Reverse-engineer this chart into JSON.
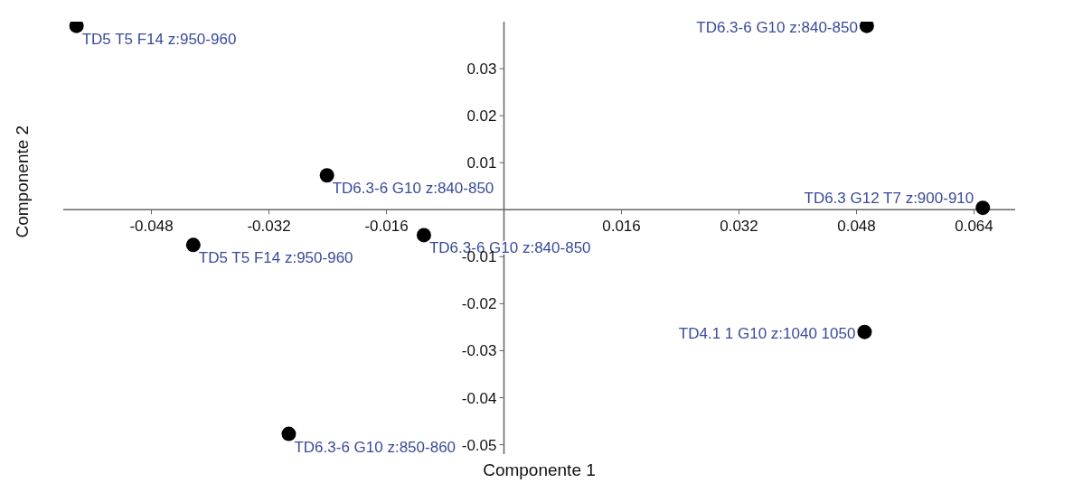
{
  "chart_data": {
    "type": "scatter",
    "xlabel": "Componente 1",
    "ylabel": "Componente 2",
    "x": [
      -0.0582,
      0.0494,
      -0.0241,
      0.0652,
      -0.0423,
      -0.0109,
      0.0491,
      -0.0293
    ],
    "values": [
      0.0391,
      0.0391,
      0.0073,
      0.0004,
      -0.0075,
      -0.0054,
      -0.026,
      -0.0477
    ],
    "color": "#000000",
    "marker": "circle",
    "xlim": [
      -0.06,
      0.0696
    ],
    "ylim": [
      -0.052,
      0.04
    ],
    "xticks": [
      -0.048,
      -0.032,
      -0.016,
      0.016,
      0.032,
      0.048,
      0.064
    ],
    "yticks": [
      0.03,
      0.02,
      0.01,
      -0.01,
      -0.02,
      -0.03,
      -0.04,
      -0.05
    ],
    "annotations": [
      {
        "text": "TD5 T5 F14 z:950-960",
        "x": -0.0582,
        "y": 0.0391
      },
      {
        "text": "TD6.3-6 G10 z:840-850",
        "x": 0.0494,
        "y": 0.0391
      },
      {
        "text": "TD6.3-6 G10 z:840-850",
        "x": -0.0241,
        "y": 0.0073
      },
      {
        "text": "TD6.3 G12 T7 z:900-910",
        "x": 0.0652,
        "y": 0.0004
      },
      {
        "text": "TD5 T5 F14 z:950-960",
        "x": -0.0423,
        "y": -0.0075
      },
      {
        "text": "TD6.3-6 G10 z:840-850",
        "x": -0.0109,
        "y": -0.0054
      },
      {
        "text": "TD4.1 1 G10 z:1040 1050",
        "x": 0.0491,
        "y": -0.026
      },
      {
        "text": "TD6.3-6 G10 z:850-860",
        "x": -0.0293,
        "y": -0.0477
      }
    ]
  }
}
